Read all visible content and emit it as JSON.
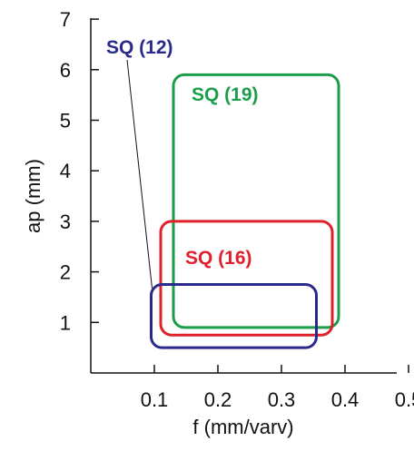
{
  "chart_data": {
    "type": "area",
    "xlabel": "f (mm/varv)",
    "ylabel": "ap (mm)",
    "xlim": [
      0,
      0.5
    ],
    "ylim": [
      0,
      7
    ],
    "xticks": [
      "0.1",
      "0.2",
      "0.3",
      "0.4",
      "0.5"
    ],
    "yticks": [
      "1",
      "2",
      "3",
      "4",
      "5",
      "6",
      "7"
    ],
    "grid": false,
    "series": [
      {
        "name": "SQ (19)",
        "color": "#1a9e4a",
        "x_range": [
          0.13,
          0.39
        ],
        "y_range": [
          0.9,
          5.9
        ]
      },
      {
        "name": "SQ (16)",
        "color": "#e0202a",
        "x_range": [
          0.11,
          0.38
        ],
        "y_range": [
          0.75,
          3.0
        ]
      },
      {
        "name": "SQ (12)",
        "color": "#2a2a8c",
        "x_range": [
          0.095,
          0.355
        ],
        "y_range": [
          0.5,
          1.75
        ]
      }
    ]
  }
}
